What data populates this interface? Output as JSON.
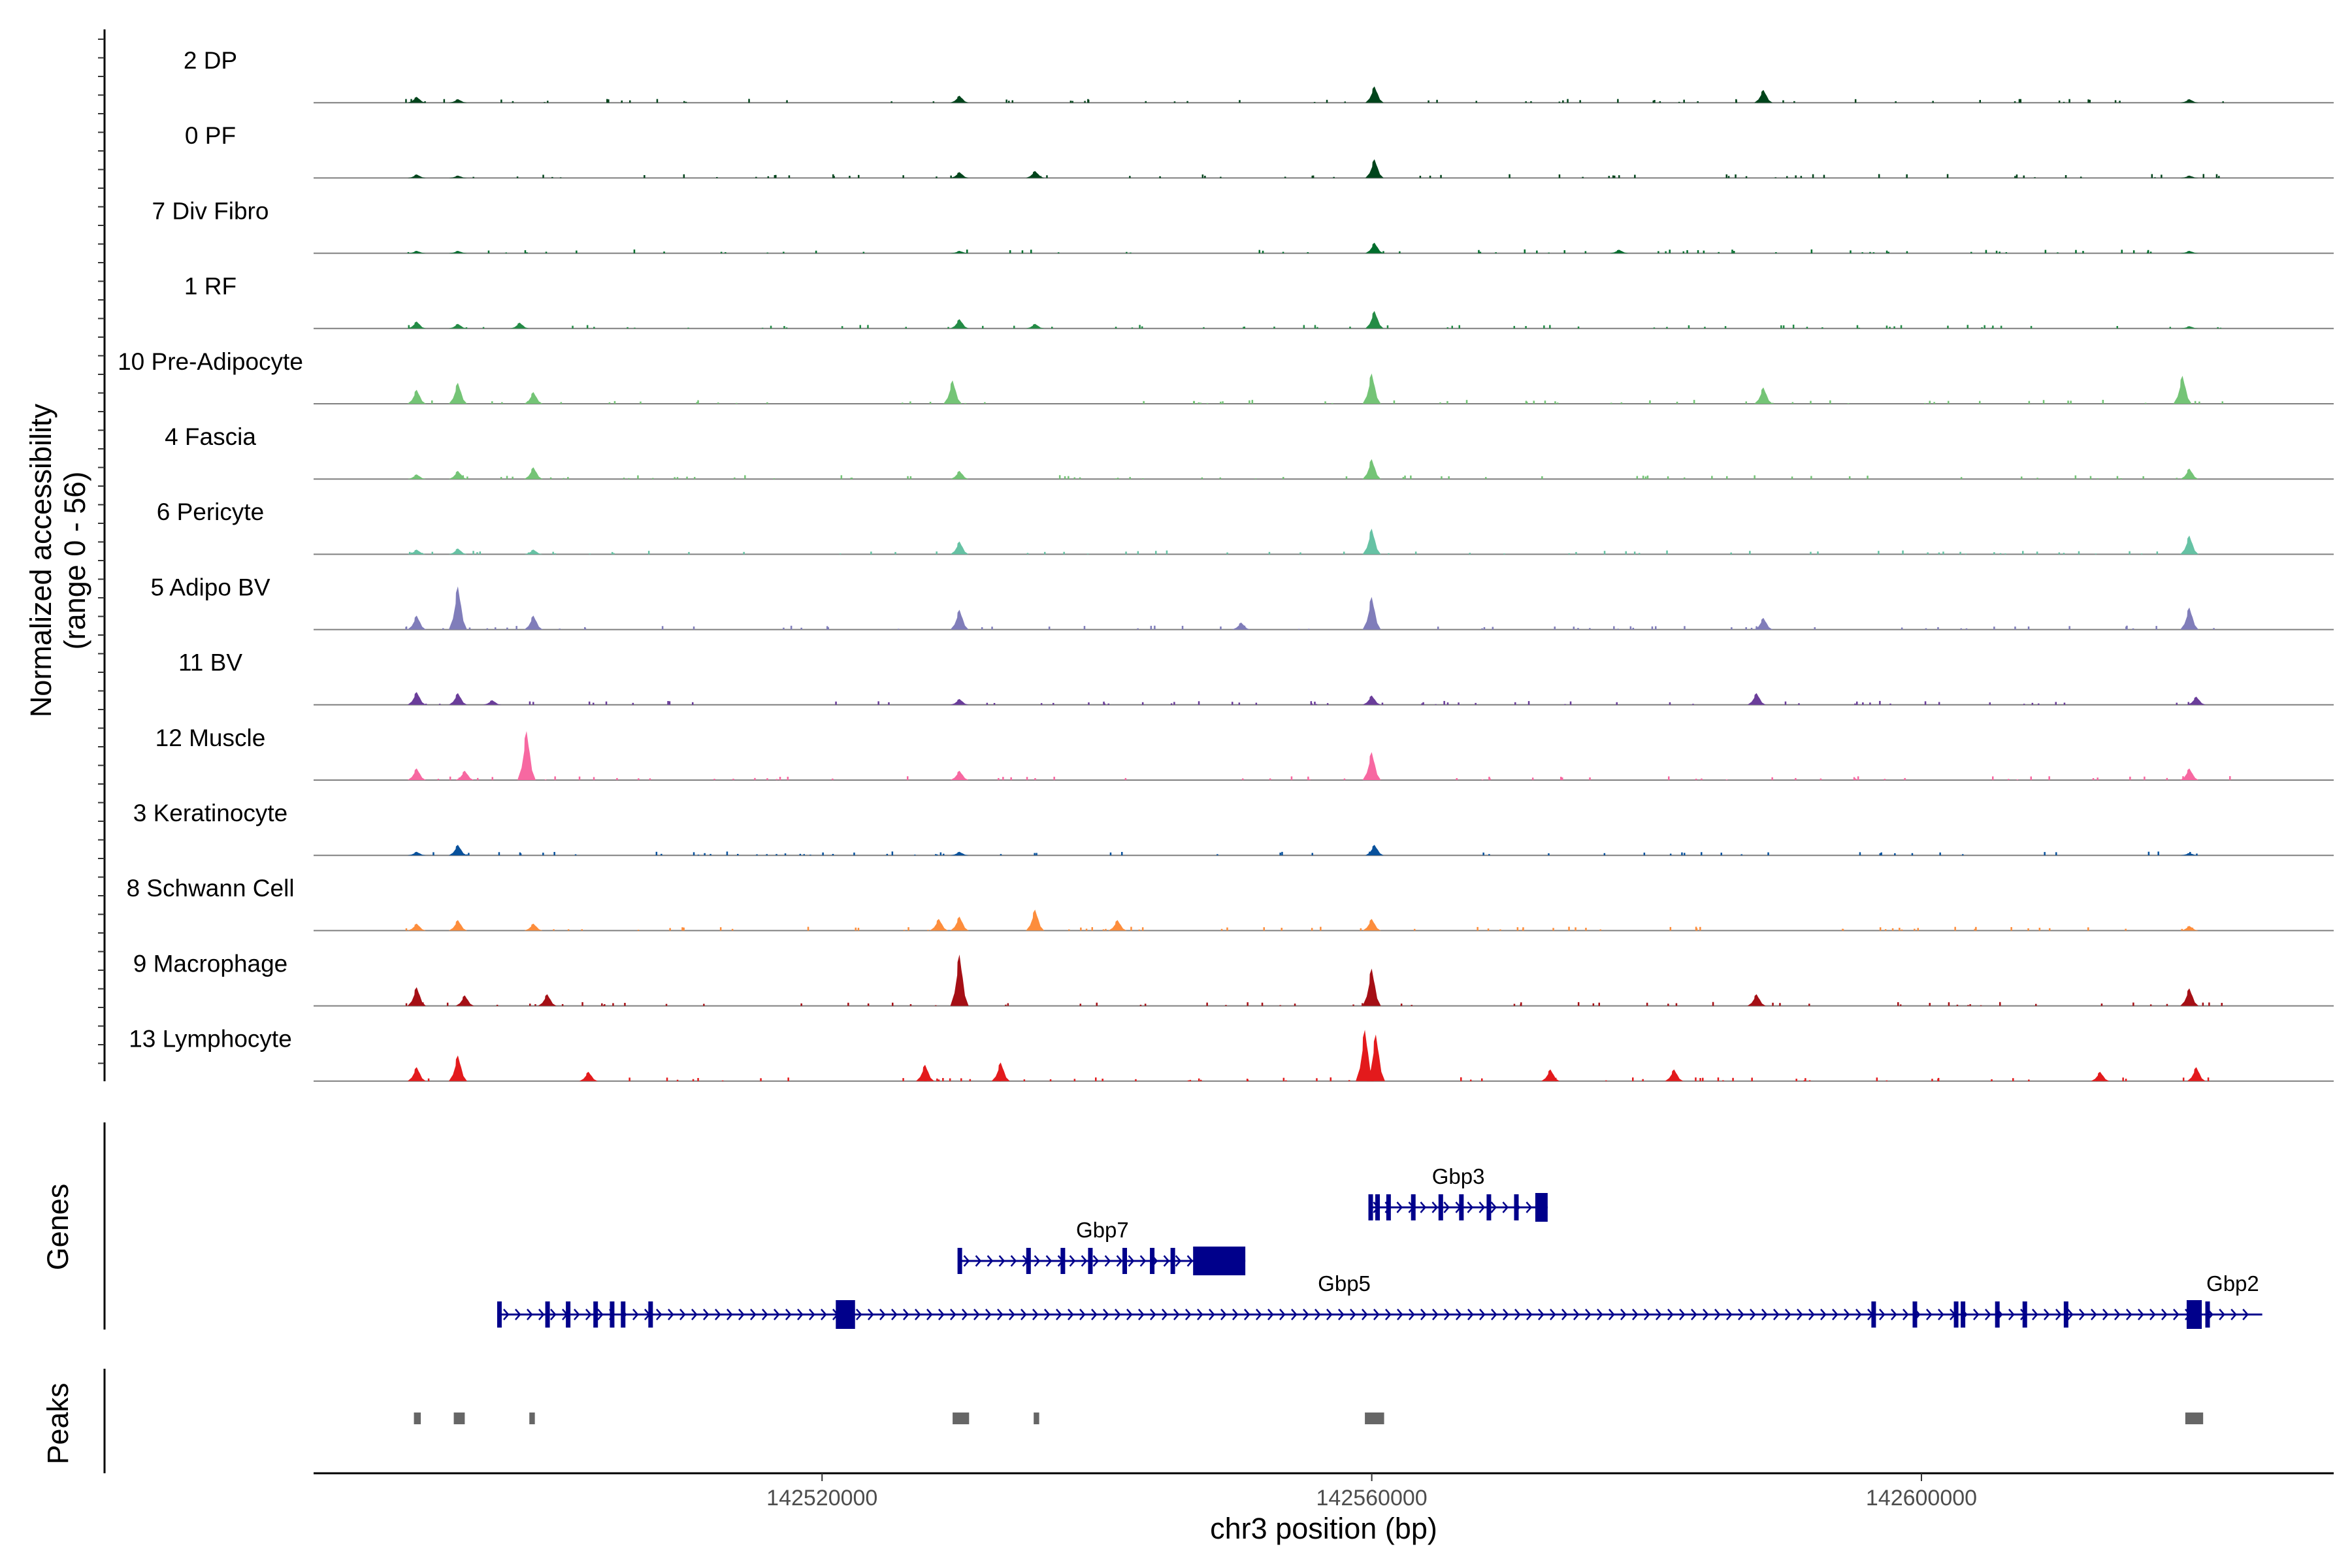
{
  "chart_data": {
    "type": "area",
    "title": "",
    "chromosome": "chr3",
    "xlabel": "chr3 position (bp)",
    "ylabel_line1": "Normalized accessibility",
    "ylabel_line2": "(range 0 - 56)",
    "ylim": [
      0,
      56
    ],
    "xlim": [
      142483000,
      142630000
    ],
    "x_ticks": [
      142520000,
      142560000,
      142600000
    ],
    "x_tick_labels": [
      "142520000",
      "142560000",
      "142600000"
    ],
    "genes_label": "Genes",
    "peaks_label": "Peaks",
    "series": [
      {
        "name": "2 DP",
        "color": "#00441b",
        "peaks": [
          [
            142490500,
            5
          ],
          [
            142493500,
            3
          ],
          [
            142530000,
            6
          ],
          [
            142560200,
            14
          ],
          [
            142588500,
            11
          ],
          [
            142619500,
            3
          ]
        ]
      },
      {
        "name": "0 PF",
        "color": "#00441b",
        "peaks": [
          [
            142490500,
            3
          ],
          [
            142493500,
            2
          ],
          [
            142530000,
            5
          ],
          [
            142535500,
            6
          ],
          [
            142560200,
            16
          ],
          [
            142619500,
            2
          ]
        ]
      },
      {
        "name": "7 Div Fibro",
        "color": "#006d2c",
        "peaks": [
          [
            142490500,
            2
          ],
          [
            142493500,
            2
          ],
          [
            142530000,
            2
          ],
          [
            142560200,
            9
          ],
          [
            142578000,
            3
          ],
          [
            142619500,
            2
          ]
        ]
      },
      {
        "name": "1 RF",
        "color": "#238b45",
        "peaks": [
          [
            142490500,
            6
          ],
          [
            142493500,
            4
          ],
          [
            142498000,
            5
          ],
          [
            142530000,
            8
          ],
          [
            142535500,
            4
          ],
          [
            142560200,
            15
          ],
          [
            142619500,
            2
          ]
        ]
      },
      {
        "name": "10 Pre-Adipocyte",
        "color": "#74c476",
        "peaks": [
          [
            142490500,
            12
          ],
          [
            142493500,
            18
          ],
          [
            142499000,
            10
          ],
          [
            142529500,
            20
          ],
          [
            142560000,
            26
          ],
          [
            142588500,
            14
          ],
          [
            142619000,
            24
          ]
        ]
      },
      {
        "name": "4 Fascia",
        "color": "#74c476",
        "peaks": [
          [
            142490500,
            4
          ],
          [
            142493500,
            7
          ],
          [
            142499000,
            10
          ],
          [
            142530000,
            7
          ],
          [
            142560000,
            17
          ],
          [
            142619500,
            9
          ]
        ]
      },
      {
        "name": "6 Pericyte",
        "color": "#66c2a4",
        "peaks": [
          [
            142490500,
            4
          ],
          [
            142493500,
            5
          ],
          [
            142499000,
            4
          ],
          [
            142530000,
            11
          ],
          [
            142560000,
            22
          ],
          [
            142619500,
            16
          ]
        ]
      },
      {
        "name": "5 Adipo BV",
        "color": "#807dba",
        "peaks": [
          [
            142490500,
            12
          ],
          [
            142493500,
            37
          ],
          [
            142499000,
            12
          ],
          [
            142530000,
            17
          ],
          [
            142550500,
            6
          ],
          [
            142560000,
            28
          ],
          [
            142588500,
            10
          ],
          [
            142619500,
            19
          ]
        ]
      },
      {
        "name": "11 BV",
        "color": "#6a3d9a",
        "peaks": [
          [
            142490500,
            11
          ],
          [
            142493500,
            10
          ],
          [
            142496000,
            4
          ],
          [
            142530000,
            5
          ],
          [
            142560000,
            8
          ],
          [
            142588000,
            10
          ],
          [
            142620000,
            7
          ]
        ]
      },
      {
        "name": "12 Muscle",
        "color": "#f768a1",
        "peaks": [
          [
            142490500,
            10
          ],
          [
            142494000,
            8
          ],
          [
            142498500,
            42
          ],
          [
            142530000,
            8
          ],
          [
            142560000,
            24
          ],
          [
            142619500,
            10
          ]
        ]
      },
      {
        "name": "3 Keratinocyte",
        "color": "#08519c",
        "peaks": [
          [
            142490500,
            3
          ],
          [
            142493500,
            9
          ],
          [
            142530000,
            3
          ],
          [
            142560200,
            9
          ],
          [
            142619500,
            2
          ]
        ]
      },
      {
        "name": "8 Schwann Cell",
        "color": "#fd8d3c",
        "peaks": [
          [
            142490500,
            6
          ],
          [
            142493500,
            9
          ],
          [
            142499000,
            6
          ],
          [
            142528500,
            10
          ],
          [
            142530000,
            12
          ],
          [
            142535500,
            18
          ],
          [
            142541500,
            9
          ],
          [
            142560000,
            10
          ],
          [
            142619500,
            4
          ]
        ]
      },
      {
        "name": "9 Macrophage",
        "color": "#a50f15",
        "peaks": [
          [
            142490500,
            16
          ],
          [
            142494000,
            9
          ],
          [
            142500000,
            10
          ],
          [
            142530000,
            44
          ],
          [
            142560000,
            32
          ],
          [
            142588000,
            10
          ],
          [
            142619500,
            15
          ]
        ]
      },
      {
        "name": "13 Lymphocyte",
        "color": "#e31a1c",
        "peaks": [
          [
            142490500,
            12
          ],
          [
            142493500,
            22
          ],
          [
            142503000,
            8
          ],
          [
            142527500,
            14
          ],
          [
            142533000,
            16
          ],
          [
            142559500,
            44
          ],
          [
            142560300,
            40
          ],
          [
            142573000,
            10
          ],
          [
            142582000,
            10
          ],
          [
            142613000,
            8
          ],
          [
            142620000,
            12
          ]
        ]
      }
    ],
    "genes": [
      {
        "name": "Gbp3",
        "start": 142559800,
        "end": 142572800,
        "strand": "+",
        "row": 0,
        "exons": [
          142559900,
          142560400,
          142561200,
          142563000,
          142565000,
          142566500,
          142568500,
          142570500
        ],
        "utr3": [
          142571900,
          142572800
        ]
      },
      {
        "name": "Gbp7",
        "start": 142530000,
        "end": 142550800,
        "strand": "+",
        "row": 1,
        "exons": [
          142530000,
          142535000,
          142537500,
          142539500,
          142542000,
          142544000,
          142545500
        ],
        "utr3": [
          142547000,
          142550800
        ]
      },
      {
        "name": "Gbp5",
        "start": 142496500,
        "end": 142620500,
        "strand": "+",
        "row": 2,
        "exons": [
          142496500,
          142500000,
          142501500,
          142503500,
          142504700,
          142505500,
          142507500,
          142596500,
          142599500,
          142602500,
          142603000,
          142605500,
          142607500,
          142610500
        ],
        "utr3": [
          142619300,
          142620400
        ]
      },
      {
        "name": "Gbp2",
        "start": 142620500,
        "end": 142624800,
        "strand": "+",
        "row": 2,
        "exons": [
          142620800
        ],
        "utr3": null
      },
      {
        "name": "Gbp5-exon",
        "start": 142521000,
        "end": 142522400,
        "strand": "+",
        "row": 2,
        "exons": [],
        "utr3": [
          142521000,
          142522400
        ],
        "hidden_label": true
      }
    ],
    "peaks": [
      [
        142490300,
        142490800
      ],
      [
        142493200,
        142494000
      ],
      [
        142498700,
        142499100
      ],
      [
        142529500,
        142530700
      ],
      [
        142535400,
        142535800
      ],
      [
        142559500,
        142560900
      ],
      [
        142619200,
        142620500
      ]
    ]
  }
}
